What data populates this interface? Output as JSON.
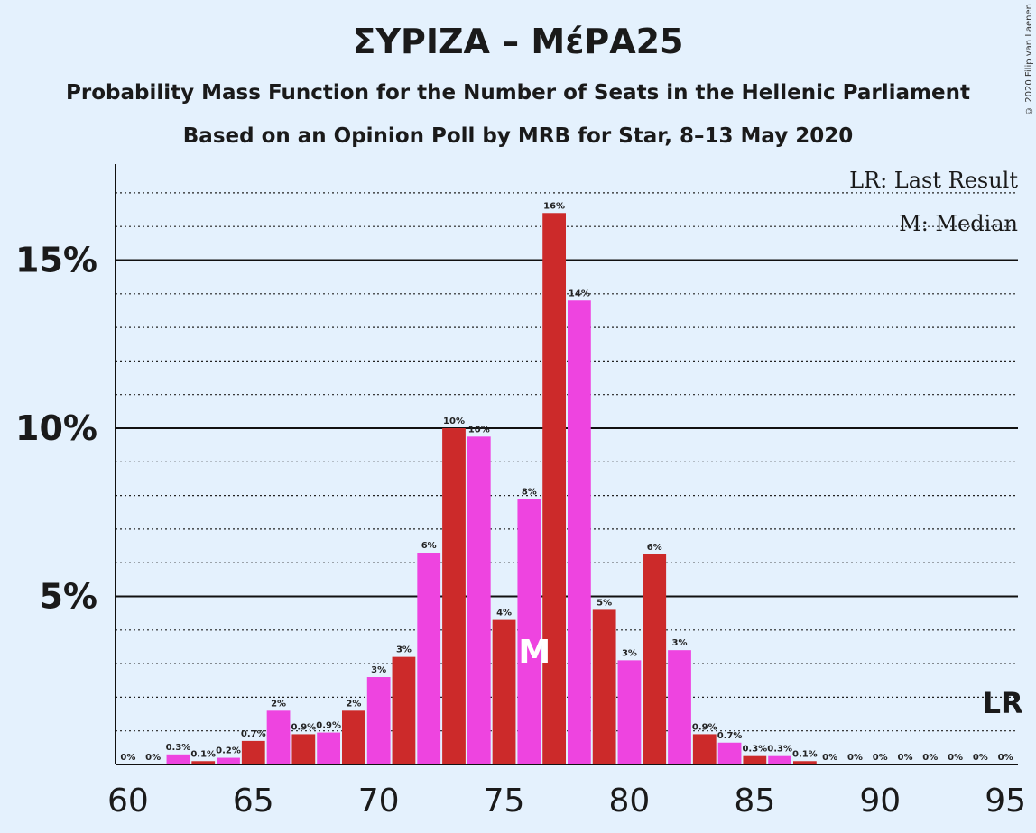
{
  "title": "ΣΥΡΙΖΑ – ΜέΡΑ25",
  "subtitle1": "Probability Mass Function for the Number of Seats in the Hellenic Parliament",
  "subtitle2": "Based on an Opinion Poll by MRB for Star, 8–13 May 2020",
  "copyright": "© 2020 Filip van Laenen",
  "legend": {
    "lr": "LR: Last Result",
    "m": "M: Median"
  },
  "markers": {
    "median_label": "M",
    "median_seat": 76,
    "last_result_label": "LR",
    "last_result_seat": 95
  },
  "colors": {
    "background": "#e4f1fd",
    "red": "#cc2a2a",
    "magenta": "#ee44e0",
    "axis": "#1a1a1a"
  },
  "chart_data": {
    "type": "bar",
    "x": [
      60,
      61,
      62,
      63,
      64,
      65,
      66,
      67,
      68,
      69,
      70,
      71,
      72,
      73,
      74,
      75,
      76,
      77,
      78,
      79,
      80,
      81,
      82,
      83,
      84,
      85,
      86,
      87,
      88,
      89,
      90,
      91,
      92,
      93,
      94,
      95
    ],
    "values": [
      0,
      0,
      0.3,
      0.1,
      0.2,
      0.7,
      1.6,
      0.9,
      0.95,
      1.6,
      2.6,
      3.2,
      6.3,
      10.0,
      9.75,
      4.3,
      7.9,
      16.4,
      13.8,
      4.6,
      3.1,
      6.25,
      3.4,
      0.9,
      0.65,
      0.25,
      0.25,
      0.1,
      0,
      0,
      0,
      0,
      0,
      0,
      0,
      0
    ],
    "labels": [
      "0%",
      "0%",
      "0.3%",
      "0.1%",
      "0.2%",
      "0.7%",
      "2%",
      "0.9%",
      "0.9%",
      "2%",
      "3%",
      "3%",
      "6%",
      "10%",
      "10%",
      "4%",
      "8%",
      "16%",
      "14%",
      "5%",
      "3%",
      "6%",
      "3%",
      "0.9%",
      "0.7%",
      "0.3%",
      "0.3%",
      "0.1%",
      "0%",
      "0%",
      "0%",
      "0%",
      "0%",
      "0%",
      "0%",
      "0%"
    ],
    "color_pattern": "alternating red/magenta by seat",
    "xticks": [
      60,
      65,
      70,
      75,
      80,
      85,
      90,
      95
    ],
    "xtick_labels": [
      "60",
      "65",
      "70",
      "75",
      "80",
      "85",
      "90",
      "95"
    ],
    "yticks": [
      5,
      10,
      15
    ],
    "ytick_labels": [
      "5%",
      "10%",
      "15%"
    ],
    "ylim": [
      0,
      17.8
    ],
    "grid": "dotted every 1%, solid every 5%",
    "legend_position": "top-right"
  }
}
